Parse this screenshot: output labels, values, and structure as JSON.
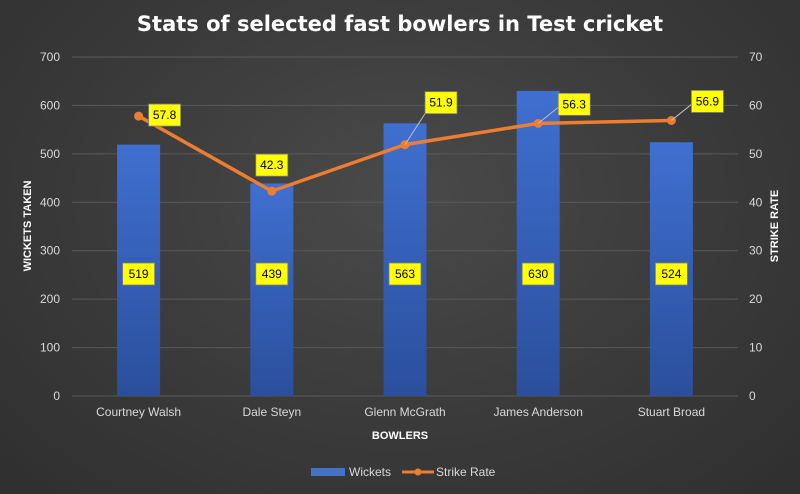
{
  "chart_data": {
    "type": "bar",
    "title": "Stats of selected fast bowlers in Test cricket",
    "xlabel": "BOWLERS",
    "ylabel": "WICKETS TAKEN",
    "y2label": "STRIKE RATE",
    "categories": [
      "Courtney Walsh",
      "Dale Steyn",
      "Glenn McGrath",
      "James Anderson",
      "Stuart Broad"
    ],
    "ylim": [
      0,
      700
    ],
    "y2lim": [
      0,
      70
    ],
    "yticks": [
      "0",
      "100",
      "200",
      "300",
      "400",
      "500",
      "600",
      "700"
    ],
    "y2ticks": [
      "0",
      "10",
      "20",
      "30",
      "40",
      "50",
      "60",
      "70"
    ],
    "series": [
      {
        "name": "Wickets",
        "type": "bar",
        "axis": "left",
        "values": [
          519,
          439,
          563,
          630,
          524
        ],
        "labels": [
          "519",
          "439",
          "563",
          "630",
          "524"
        ]
      },
      {
        "name": "Strike Rate",
        "type": "line",
        "axis": "right",
        "values": [
          57.8,
          42.3,
          51.9,
          56.3,
          56.9
        ],
        "labels": [
          "57.8",
          "42.3",
          "51.9",
          "56.3",
          "56.9"
        ]
      }
    ],
    "colors": {
      "bar": "#4472c4",
      "line": "#ed7d31"
    },
    "grid": true,
    "legend": "bottom",
    "data_label_style": "yellow boxes"
  }
}
